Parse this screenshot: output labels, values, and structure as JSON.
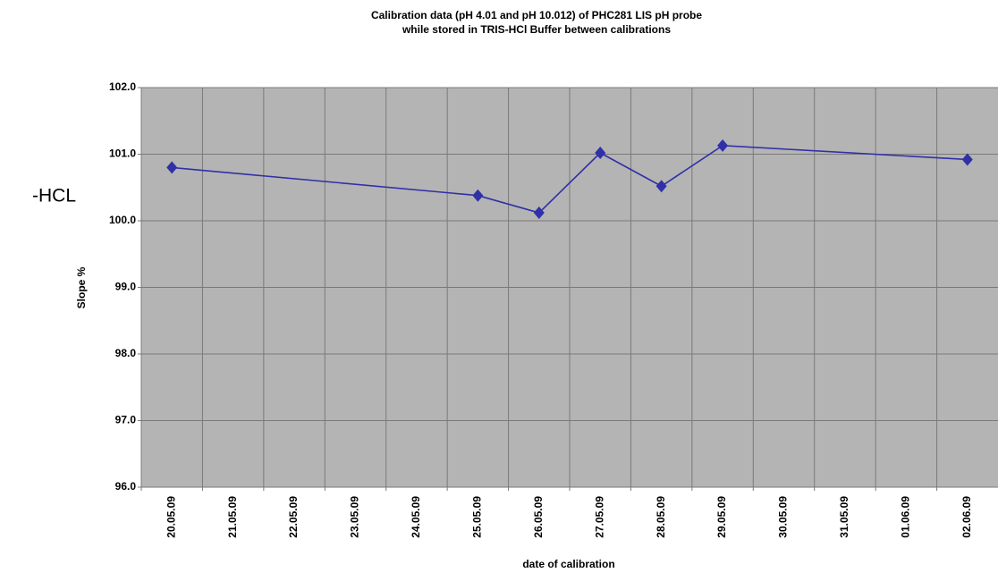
{
  "chart_data": {
    "type": "line",
    "title": "Calibration data (pH 4.01 and pH 10.012) of PHC281 LIS pH probe",
    "subtitle": "while stored in TRIS-HCl Buffer between calibrations",
    "annotation": "-HCL",
    "x_label": "date of calibration",
    "y_label": "Slope %",
    "categories": [
      "20.05.09",
      "21.05.09",
      "22.05.09",
      "23.05.09",
      "24.05.09",
      "25.05.09",
      "26.05.09",
      "27.05.09",
      "28.05.09",
      "29.05.09",
      "30.05.09",
      "31.05.09",
      "01.06.09",
      "02.06.09"
    ],
    "series": [
      {
        "color": "#3030a8",
        "x": [
          "20.05.09",
          "25.05.09",
          "26.05.09",
          "27.05.09",
          "28.05.09",
          "29.05.09",
          "02.06.09"
        ],
        "values": [
          100.8,
          100.38,
          100.12,
          101.02,
          100.52,
          101.13,
          100.92
        ]
      }
    ],
    "ylim": [
      96,
      102
    ],
    "yticks": [
      {
        "value": 96,
        "label": "96.0"
      },
      {
        "value": 97,
        "label": "97.0"
      },
      {
        "value": 98,
        "label": "98.0"
      },
      {
        "value": 99,
        "label": "99.0"
      },
      {
        "value": 100,
        "label": "100.0"
      },
      {
        "value": 101,
        "label": "101.0"
      },
      {
        "value": 102,
        "label": "102.0"
      }
    ],
    "grid": true
  }
}
